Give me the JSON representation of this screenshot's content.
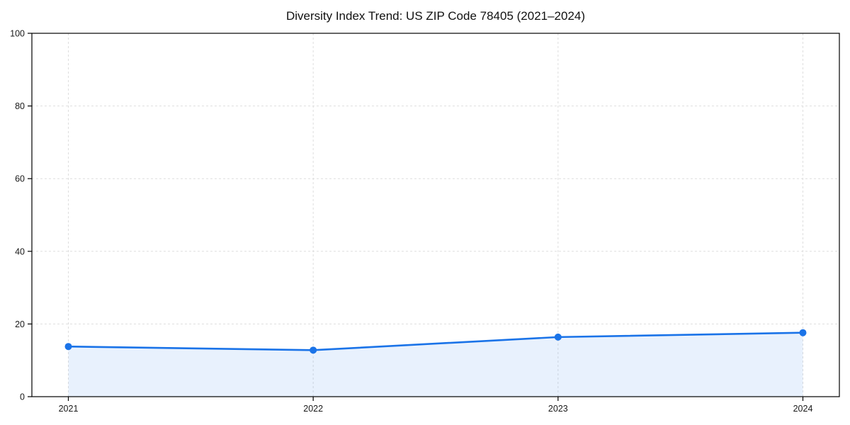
{
  "chart_data": {
    "type": "line",
    "title": "Diversity Index Trend: US ZIP Code 78405 (2021–2024)",
    "categories": [
      "2021",
      "2022",
      "2023",
      "2024"
    ],
    "series": [
      {
        "name": "Diversity Index",
        "values": [
          13.8,
          12.8,
          16.4,
          17.6
        ]
      }
    ],
    "xlabel": "",
    "ylabel": "",
    "ylim": [
      0,
      100
    ],
    "yticks": [
      0,
      20,
      40,
      60,
      80,
      100
    ],
    "grid": true,
    "grid_style": "dashed",
    "legend": "none",
    "area_fill": true,
    "style": {
      "line_color": "#1a73e8",
      "marker_color": "#1a73e8",
      "fill_color": "#1a73e8",
      "fill_opacity": 0.1,
      "gridline_color": "#dedede",
      "axis_color": "#000000",
      "tick_label_color": "#1a1a1a",
      "background": "#ffffff"
    }
  }
}
